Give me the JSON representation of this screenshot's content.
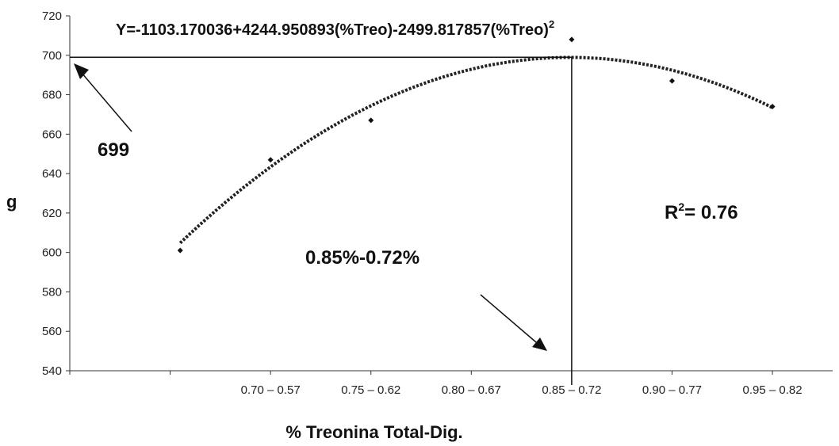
{
  "chart_data": {
    "type": "scatter",
    "equation": "Y=-1103.170036+4244.950893(%Treo)-2499.817857(%Treo)",
    "equation_superscript": "2",
    "r2_label": "R",
    "r2_superscript": "2",
    "r2_value": "= 0.76",
    "optimum_label": "0.85%-0.72%",
    "peak_label": "699",
    "xlabel": "% Treonina Total-Dig.",
    "ylabel": "g",
    "x_tick_labels": [
      "0.70 – 0.57",
      "0.75 – 0.62",
      "0.80 – 0.67",
      "0.85 – 0.72",
      "0.90 – 0.77",
      "0.95 – 0.82"
    ],
    "x_tick_values": [
      0.7,
      0.75,
      0.8,
      0.85,
      0.9,
      0.95
    ],
    "xlim": [
      0.6,
      0.98
    ],
    "ylim": [
      540,
      720
    ],
    "y_ticks": [
      540,
      560,
      580,
      600,
      620,
      640,
      660,
      680,
      700,
      720
    ],
    "points": [
      {
        "x": 0.655,
        "y": 601
      },
      {
        "x": 0.7,
        "y": 647
      },
      {
        "x": 0.75,
        "y": 667
      },
      {
        "x": 0.85,
        "y": 708
      },
      {
        "x": 0.9,
        "y": 687
      },
      {
        "x": 0.95,
        "y": 674
      }
    ],
    "fit": {
      "a": -1103.170036,
      "b": 4244.950893,
      "c": -2499.817857,
      "x_start": 0.655,
      "x_end": 0.95
    },
    "peak_y": 699,
    "optimum_x": 0.85,
    "grid": false
  }
}
